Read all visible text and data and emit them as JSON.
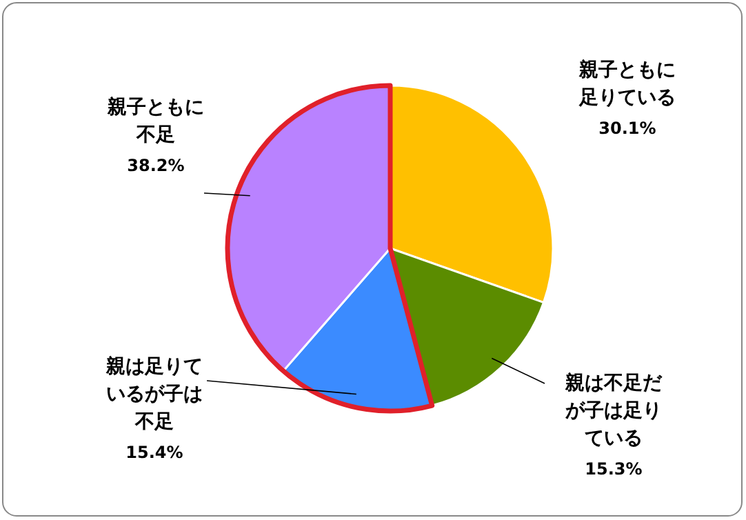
{
  "chart_data": {
    "type": "pie",
    "categories": [
      "親子ともに足りている",
      "親は不足だが子は足りている",
      "親は足りているが子は不足",
      "親子ともに不足"
    ],
    "values": [
      30.1,
      15.3,
      15.4,
      38.2
    ],
    "colors": [
      "#ffc000",
      "#5b8c00",
      "#3b8bff",
      "#b982ff"
    ],
    "value_labels": [
      "30.1%",
      "15.3%",
      "15.4%",
      "38.2%"
    ]
  }
}
